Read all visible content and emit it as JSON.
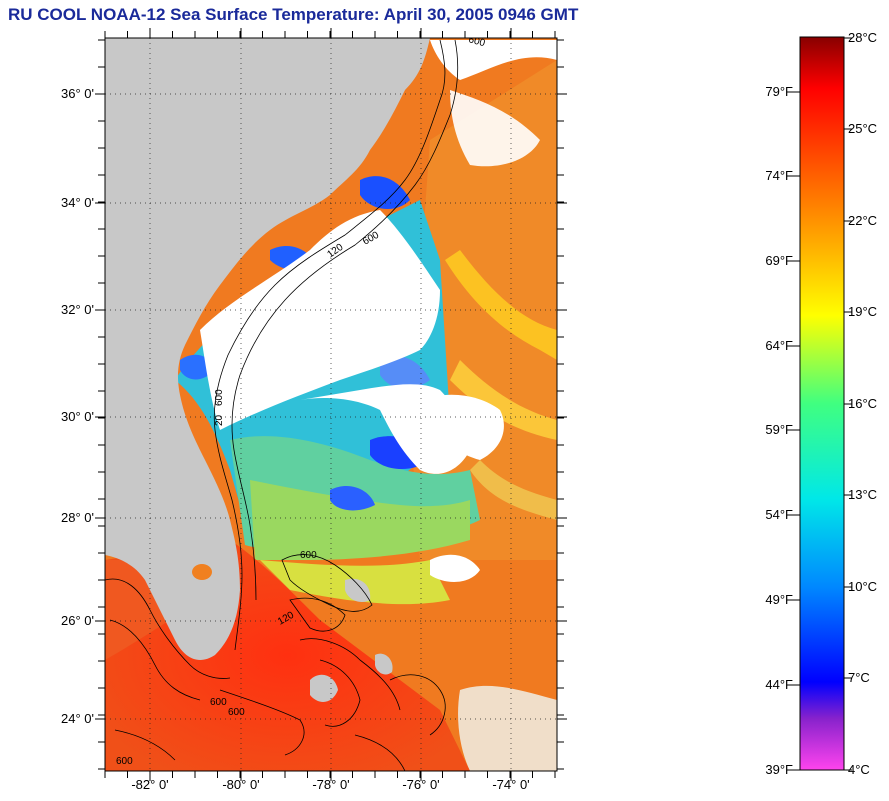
{
  "title": "RU COOL  NOAA-12  Sea Surface Temperature:  April 30, 2005 0946 GMT",
  "map": {
    "lat_labels": [
      "36° 0'",
      "34° 0'",
      "32° 0'",
      "30° 0'",
      "28° 0'",
      "26° 0'",
      "24° 0'"
    ],
    "lon_labels": [
      "-82° 0'",
      "-80° 0'",
      "-78° 0'",
      "-76° 0'",
      "-74° 0'"
    ],
    "isobath_labels": [
      "600",
      "120",
      "20",
      "600",
      "600",
      "120",
      "600",
      "600",
      "600",
      "600"
    ],
    "colors": {
      "land": "#c8c8c8",
      "cloud": "#ffffff",
      "warm_water": "#f03010",
      "mid_water": "#f08020",
      "cool_water": "#2080f0"
    }
  },
  "colorbar": {
    "fahrenheit_labels": [
      "79°F",
      "74°F",
      "69°F",
      "64°F",
      "59°F",
      "54°F",
      "49°F",
      "44°F",
      "39°F"
    ],
    "celsius_labels": [
      "28°C",
      "25°C",
      "22°C",
      "19°C",
      "16°C",
      "13°C",
      "10°C",
      "7°C",
      "4°C"
    ],
    "range_celsius": [
      4,
      28
    ],
    "stops": [
      "#ff44ee",
      "#8822cc",
      "#0000ff",
      "#0088ff",
      "#00e8e8",
      "#40ff80",
      "#ffff00",
      "#ffaa00",
      "#ff4000",
      "#ff0000",
      "#880000"
    ]
  }
}
